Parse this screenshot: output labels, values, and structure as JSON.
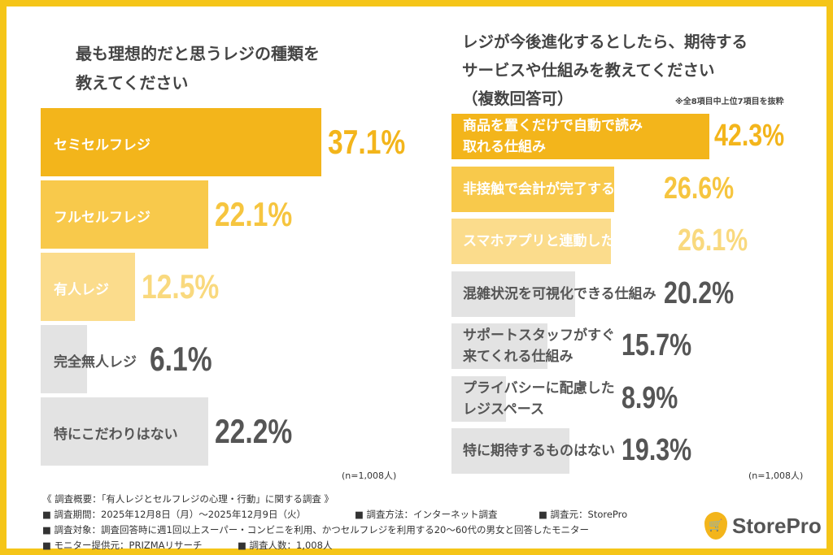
{
  "colors": {
    "frame": "#f5c518",
    "dark": "#f3b51b",
    "mid": "#f8c94b",
    "light": "#fbdc8c",
    "gray": "#e3e3e3",
    "text": "#555555"
  },
  "chart_data": [
    {
      "type": "bar",
      "orientation": "horizontal",
      "title": "最も理想的だと思うレジの種類を教えてください",
      "categories": [
        "セミセルフレジ",
        "フルセルフレジ",
        "有人レジ",
        "完全無人レジ",
        "特にこだわりはない"
      ],
      "values": [
        37.1,
        22.1,
        12.5,
        6.1,
        22.2
      ],
      "value_labels": [
        "37.1%",
        "22.1%",
        "12.5%",
        "6.1%",
        "22.2%"
      ],
      "bar_colors": [
        "#f3b51b",
        "#f8c94b",
        "#fbdc8c",
        "#e3e3e3",
        "#e3e3e3"
      ],
      "value_colors": [
        "#f3b51b",
        "#f6c53f",
        "#f9d97e",
        "#555555",
        "#555555"
      ],
      "label_colors": [
        "#ffffff",
        "#ffffff",
        "#ffffff",
        "#555555",
        "#555555"
      ],
      "sample": "(n=1,008人)",
      "unit": "%"
    },
    {
      "type": "bar",
      "orientation": "horizontal",
      "title": "レジが今後進化するとしたら、期待するサービスや仕組みを教えてください（複数回答可）",
      "note": "※全8項目中上位7項目を抜粋",
      "categories": [
        "商品を置くだけで自動で読み取れる仕組み",
        "非接触で会計が完了する仕組み",
        "スマホアプリと連動した自動決済",
        "混雑状況を可視化できる仕組み",
        "サポートスタッフがすぐ来てくれる仕組み",
        "プライバシーに配慮したレジスペース",
        "特に期待するものはない"
      ],
      "label_lines": [
        [
          "商品を置くだけで自動で読み",
          "取れる仕組み"
        ],
        [
          "非接触で会計が完了する仕組み"
        ],
        [
          "スマホアプリと連動した自動決済"
        ],
        [
          "混雑状況を可視化できる仕組み"
        ],
        [
          "サポートスタッフがすぐ",
          "来てくれる仕組み"
        ],
        [
          "プライバシーに配慮した",
          "レジスペース"
        ],
        [
          "特に期待するものはない"
        ]
      ],
      "values": [
        42.3,
        26.6,
        26.1,
        20.2,
        15.7,
        8.9,
        19.3
      ],
      "value_labels": [
        "42.3%",
        "26.6%",
        "26.1%",
        "20.2%",
        "15.7%",
        "8.9%",
        "19.3%"
      ],
      "bar_colors": [
        "#f3b51b",
        "#f8c94b",
        "#fbdc8c",
        "#e3e3e3",
        "#e3e3e3",
        "#e3e3e3",
        "#e3e3e3"
      ],
      "value_colors": [
        "#f3b51b",
        "#f6c53f",
        "#f9d97e",
        "#555555",
        "#555555",
        "#555555",
        "#555555"
      ],
      "label_colors": [
        "#ffffff",
        "#ffffff",
        "#ffffff",
        "#555555",
        "#555555",
        "#555555",
        "#555555"
      ],
      "sample": "(n=1,008人)",
      "unit": "%"
    }
  ],
  "left": {
    "title1": "最も理想的だと思うレジの種類を",
    "title2": "教えてください"
  },
  "right": {
    "title1": "レジが今後進化するとしたら、期待する",
    "title2": "サービスや仕組みを教えてください",
    "title3": "（複数回答可）"
  },
  "footer": {
    "overview": "《 調査概要：「有人レジとセルフレジの心理・行動」に関する調査 》",
    "period": "■ 調査期間：2025年12月8日（月）～2025年12月9日（火）",
    "method": "■ 調査方法：インターネット調査",
    "source": "■ 調査元：StorePro",
    "target": "■ 調査対象：調査回答時に週1回以上スーパー・コンビニを利用、かつセルフレジを利用する20～60代の男女と回答したモニター",
    "provider": "■ モニター提供元：PRIZMAリサーチ",
    "count": "■ 調査人数：1,008人"
  },
  "logo": {
    "text": "StorePro",
    "icon": "cart-pin-icon"
  }
}
